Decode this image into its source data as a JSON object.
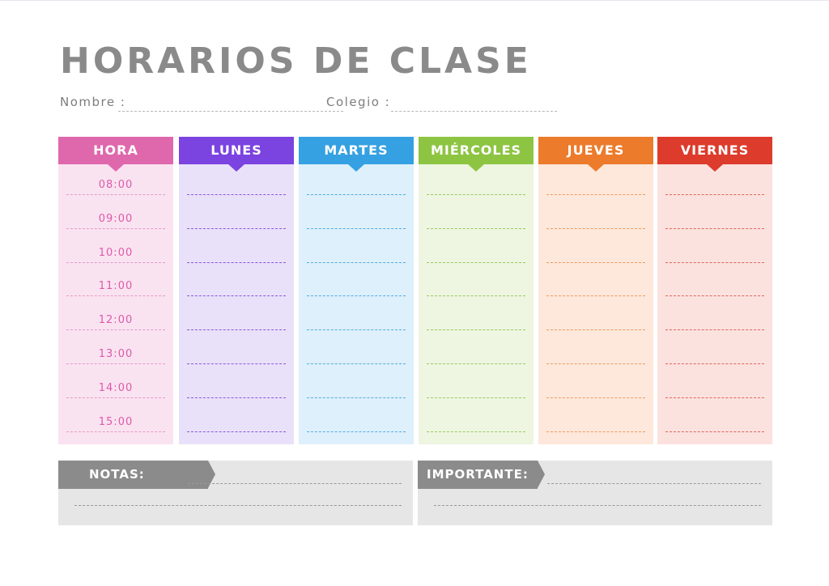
{
  "title": "HORARIOS DE CLASE",
  "fields": {
    "name_label": "Nombre :",
    "school_label": "Colegio :"
  },
  "columns": [
    {
      "key": "hora",
      "label": "HORA",
      "color": "#df68ad",
      "body": "#fae3f1",
      "dash": "#e29bc6"
    },
    {
      "key": "lunes",
      "label": "LUNES",
      "color": "#7b43e0",
      "body": "#e9e1f9",
      "dash": "#8a58e0"
    },
    {
      "key": "martes",
      "label": "MARTES",
      "color": "#35a1e2",
      "body": "#def0fb",
      "dash": "#53addf"
    },
    {
      "key": "miercoles",
      "label": "MIÉRCOLES",
      "color": "#8dc442",
      "body": "#eef6e2",
      "dash": "#9bc95c"
    },
    {
      "key": "jueves",
      "label": "JUEVES",
      "color": "#ec7b2b",
      "body": "#fde8db",
      "dash": "#ee9b61"
    },
    {
      "key": "viernes",
      "label": "VIERNES",
      "color": "#dd3b2b",
      "body": "#fbe2df",
      "dash": "#e2665a"
    }
  ],
  "hours": [
    "08:00",
    "09:00",
    "10:00",
    "11:00",
    "12:00",
    "13:00",
    "14:00",
    "15:00"
  ],
  "notes": {
    "notas_label": "NOTAS:",
    "importante_label": "IMPORTANTE:"
  }
}
